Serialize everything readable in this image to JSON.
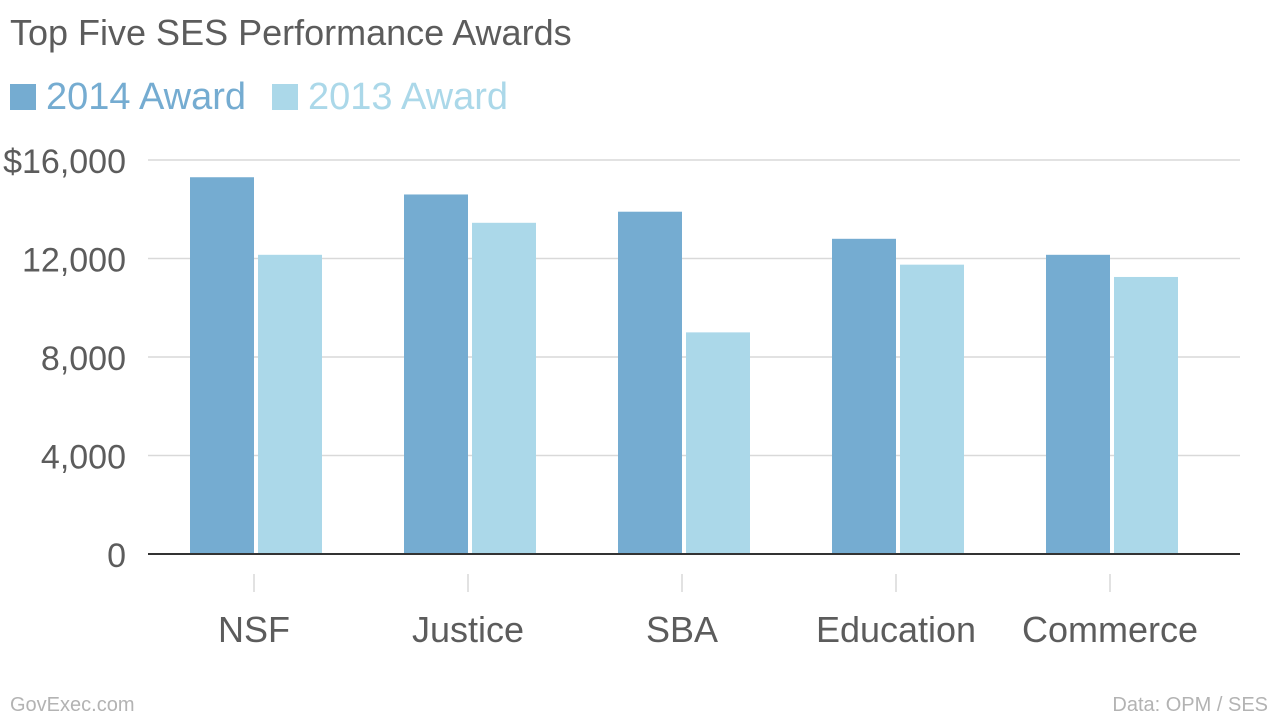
{
  "colors": {
    "series_2014": "#75acd1",
    "series_2013": "#abd8e9",
    "gridline": "#d9d9d9",
    "baseline": "#333333",
    "text": "#5c5c5c",
    "footer_text": "#b3b3b3"
  },
  "footer": {
    "source_left": "GovExec.com",
    "source_right": "Data: OPM / SES"
  },
  "chart_data": {
    "type": "bar",
    "title": "Top Five SES Performance Awards",
    "categories": [
      "NSF",
      "Justice",
      "SBA",
      "Education",
      "Commerce"
    ],
    "series": [
      {
        "name": "2014 Award",
        "values": [
          15300,
          14600,
          13900,
          12800,
          12150
        ]
      },
      {
        "name": "2013 Award",
        "values": [
          12150,
          13450,
          9000,
          11750,
          11250
        ]
      }
    ],
    "y_ticks": [
      0,
      4000,
      8000,
      12000,
      16000
    ],
    "y_tick_labels": [
      "0",
      "4,000",
      "8,000",
      "12,000",
      "$16,000"
    ],
    "ylim": [
      0,
      16000
    ],
    "xlabel": "",
    "ylabel": "",
    "grid": true,
    "legend_position": "top-left"
  }
}
